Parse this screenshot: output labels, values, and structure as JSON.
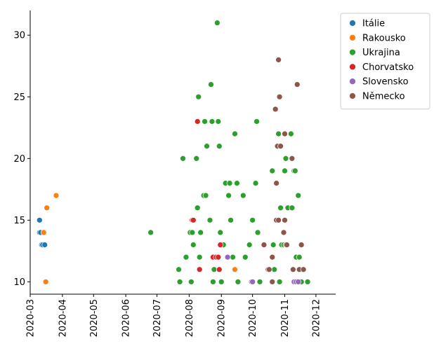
{
  "chart_data": {
    "type": "scatter",
    "title": "",
    "xlabel": "",
    "ylabel": "",
    "x_axis_type": "date",
    "xlim": [
      "2020-03-01",
      "2020-12-20"
    ],
    "ylim": [
      9.0,
      32.0
    ],
    "x_ticks": [
      "2020-03",
      "2020-04",
      "2020-05",
      "2020-06",
      "2020-07",
      "2020-08",
      "2020-09",
      "2020-10",
      "2020-11",
      "2020-12"
    ],
    "y_ticks": [
      10,
      15,
      20,
      25,
      30
    ],
    "legend_position": "top-right",
    "grid": false,
    "series": [
      {
        "name": "Itálie",
        "color": "#1f77b4",
        "points": [
          {
            "x": "2020-03-10",
            "y": 15
          },
          {
            "x": "2020-03-10",
            "y": 14
          },
          {
            "x": "2020-03-12",
            "y": 13
          },
          {
            "x": "2020-03-13",
            "y": 13
          },
          {
            "x": "2020-03-15",
            "y": 13
          },
          {
            "x": "2020-03-11",
            "y": 14
          }
        ]
      },
      {
        "name": "Rakousko",
        "color": "#ff7f0e",
        "points": [
          {
            "x": "2020-03-14",
            "y": 14
          },
          {
            "x": "2020-03-17",
            "y": 16
          },
          {
            "x": "2020-03-16",
            "y": 10
          },
          {
            "x": "2020-03-26",
            "y": 17
          },
          {
            "x": "2020-09-14",
            "y": 11
          }
        ]
      },
      {
        "name": "Ukrajina",
        "color": "#2ca02c",
        "points": [
          {
            "x": "2020-06-25",
            "y": 14
          },
          {
            "x": "2020-07-22",
            "y": 11
          },
          {
            "x": "2020-07-23",
            "y": 10
          },
          {
            "x": "2020-07-26",
            "y": 20
          },
          {
            "x": "2020-07-29",
            "y": 12
          },
          {
            "x": "2020-08-02",
            "y": 14
          },
          {
            "x": "2020-08-03",
            "y": 10
          },
          {
            "x": "2020-08-04",
            "y": 14
          },
          {
            "x": "2020-08-05",
            "y": 13
          },
          {
            "x": "2020-08-08",
            "y": 20
          },
          {
            "x": "2020-08-09",
            "y": 16
          },
          {
            "x": "2020-08-10",
            "y": 25
          },
          {
            "x": "2020-08-11",
            "y": 12
          },
          {
            "x": "2020-08-12",
            "y": 14
          },
          {
            "x": "2020-08-15",
            "y": 17
          },
          {
            "x": "2020-08-16",
            "y": 23
          },
          {
            "x": "2020-08-17",
            "y": 17
          },
          {
            "x": "2020-08-18",
            "y": 21
          },
          {
            "x": "2020-08-21",
            "y": 15
          },
          {
            "x": "2020-08-22",
            "y": 26
          },
          {
            "x": "2020-08-23",
            "y": 23
          },
          {
            "x": "2020-08-24",
            "y": 10
          },
          {
            "x": "2020-08-25",
            "y": 11
          },
          {
            "x": "2020-08-28",
            "y": 31
          },
          {
            "x": "2020-08-29",
            "y": 23
          },
          {
            "x": "2020-08-30",
            "y": 21
          },
          {
            "x": "2020-08-31",
            "y": 14
          },
          {
            "x": "2020-09-01",
            "y": 10
          },
          {
            "x": "2020-09-03",
            "y": 13
          },
          {
            "x": "2020-09-05",
            "y": 18
          },
          {
            "x": "2020-09-08",
            "y": 17
          },
          {
            "x": "2020-09-09",
            "y": 18
          },
          {
            "x": "2020-09-10",
            "y": 15
          },
          {
            "x": "2020-09-12",
            "y": 12
          },
          {
            "x": "2020-09-14",
            "y": 22
          },
          {
            "x": "2020-09-16",
            "y": 18
          },
          {
            "x": "2020-09-17",
            "y": 10
          },
          {
            "x": "2020-09-22",
            "y": 17
          },
          {
            "x": "2020-09-24",
            "y": 12
          },
          {
            "x": "2020-09-28",
            "y": 13
          },
          {
            "x": "2020-10-01",
            "y": 15
          },
          {
            "x": "2020-10-04",
            "y": 18
          },
          {
            "x": "2020-10-05",
            "y": 23
          },
          {
            "x": "2020-10-06",
            "y": 14
          },
          {
            "x": "2020-10-08",
            "y": 10
          },
          {
            "x": "2020-10-20",
            "y": 19
          },
          {
            "x": "2020-10-21",
            "y": 13
          },
          {
            "x": "2020-10-22",
            "y": 11
          },
          {
            "x": "2020-10-26",
            "y": 22
          },
          {
            "x": "2020-10-27",
            "y": 10
          },
          {
            "x": "2020-10-28",
            "y": 16
          },
          {
            "x": "2020-10-29",
            "y": 13
          },
          {
            "x": "2020-11-01",
            "y": 19
          },
          {
            "x": "2020-11-02",
            "y": 20
          },
          {
            "x": "2020-11-04",
            "y": 16
          },
          {
            "x": "2020-11-07",
            "y": 22
          },
          {
            "x": "2020-11-08",
            "y": 16
          },
          {
            "x": "2020-11-09",
            "y": 11
          },
          {
            "x": "2020-11-10",
            "y": 19
          },
          {
            "x": "2020-11-11",
            "y": 19
          },
          {
            "x": "2020-11-12",
            "y": 12
          },
          {
            "x": "2020-11-13",
            "y": 10
          },
          {
            "x": "2020-11-14",
            "y": 17
          },
          {
            "x": "2020-11-15",
            "y": 12
          },
          {
            "x": "2020-11-16",
            "y": 11
          },
          {
            "x": "2020-11-17",
            "y": 10
          },
          {
            "x": "2020-11-23",
            "y": 10
          },
          {
            "x": "2020-10-31",
            "y": 13
          }
        ]
      },
      {
        "name": "Chorvatsko",
        "color": "#d62728",
        "points": [
          {
            "x": "2020-08-04",
            "y": 15
          },
          {
            "x": "2020-08-05",
            "y": 15
          },
          {
            "x": "2020-08-09",
            "y": 23
          },
          {
            "x": "2020-08-11",
            "y": 11
          },
          {
            "x": "2020-08-24",
            "y": 12
          },
          {
            "x": "2020-08-27",
            "y": 12
          },
          {
            "x": "2020-08-29",
            "y": 12
          },
          {
            "x": "2020-08-30",
            "y": 11
          },
          {
            "x": "2020-08-31",
            "y": 13
          }
        ]
      },
      {
        "name": "Slovensko",
        "color": "#9467bd",
        "points": [
          {
            "x": "2020-09-07",
            "y": 12
          },
          {
            "x": "2020-09-30",
            "y": 10
          },
          {
            "x": "2020-10-01",
            "y": 10
          },
          {
            "x": "2020-11-10",
            "y": 10
          },
          {
            "x": "2020-11-12",
            "y": 10
          },
          {
            "x": "2020-11-14",
            "y": 10
          }
        ]
      },
      {
        "name": "Německo",
        "color": "#8c564b",
        "points": [
          {
            "x": "2020-10-12",
            "y": 13
          },
          {
            "x": "2020-10-16",
            "y": 11
          },
          {
            "x": "2020-10-17",
            "y": 11
          },
          {
            "x": "2020-10-20",
            "y": 10
          },
          {
            "x": "2020-10-20",
            "y": 12
          },
          {
            "x": "2020-10-23",
            "y": 24
          },
          {
            "x": "2020-10-24",
            "y": 18
          },
          {
            "x": "2020-10-24",
            "y": 15
          },
          {
            "x": "2020-10-25",
            "y": 21
          },
          {
            "x": "2020-10-26",
            "y": 28
          },
          {
            "x": "2020-10-26",
            "y": 15
          },
          {
            "x": "2020-10-27",
            "y": 25
          },
          {
            "x": "2020-10-28",
            "y": 21
          },
          {
            "x": "2020-10-31",
            "y": 14
          },
          {
            "x": "2020-11-01",
            "y": 22
          },
          {
            "x": "2020-11-01",
            "y": 15
          },
          {
            "x": "2020-11-02",
            "y": 13
          },
          {
            "x": "2020-11-03",
            "y": 13
          },
          {
            "x": "2020-11-08",
            "y": 20
          },
          {
            "x": "2020-11-09",
            "y": 11
          },
          {
            "x": "2020-11-13",
            "y": 26
          },
          {
            "x": "2020-11-15",
            "y": 11
          },
          {
            "x": "2020-11-17",
            "y": 13
          },
          {
            "x": "2020-11-19",
            "y": 11
          }
        ]
      }
    ]
  }
}
